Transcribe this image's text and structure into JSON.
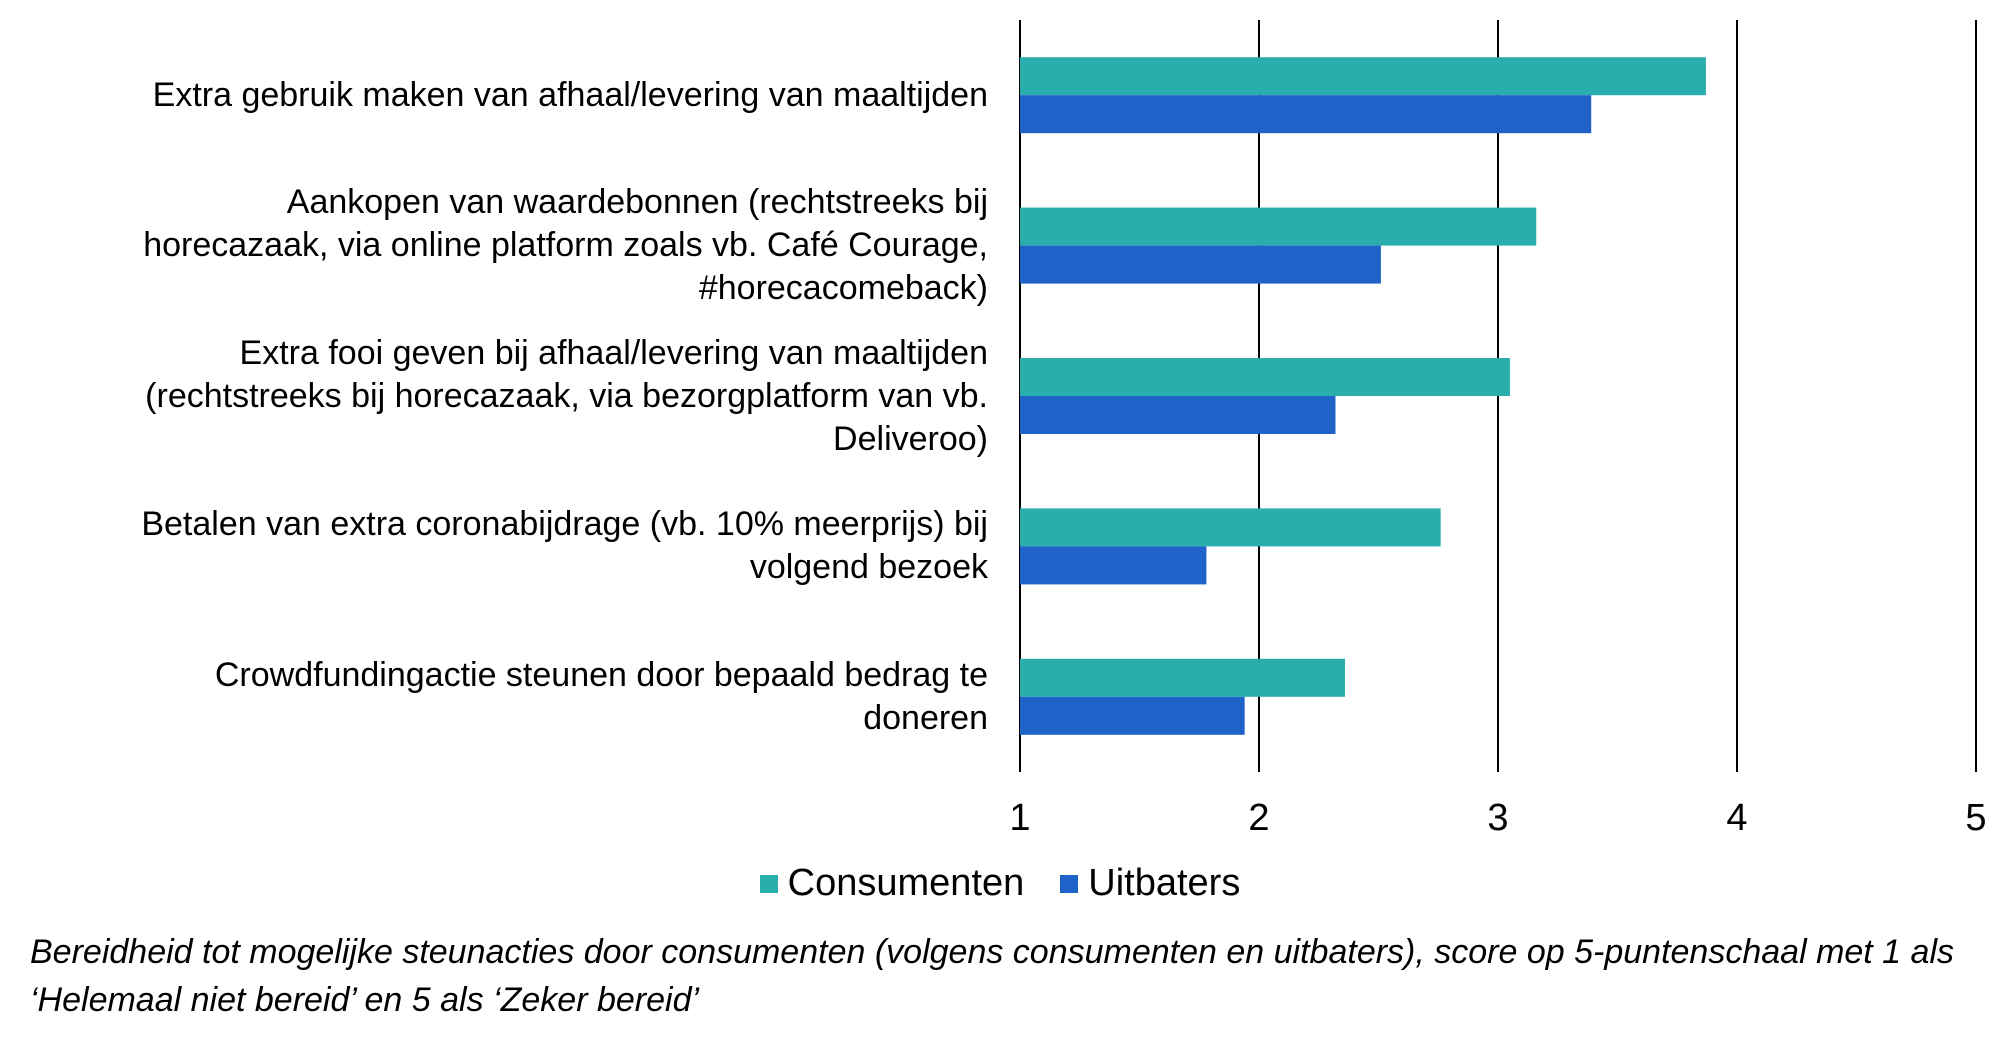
{
  "chart_data": {
    "type": "bar",
    "orientation": "horizontal",
    "categories": [
      "Extra gebruik maken van afhaal/levering van maaltijden",
      "Aankopen van waardebonnen (rechtstreeks bij\nhorecazaak, via online platform zoals vb. Café Courage,\n#horecacomeback)",
      "Extra fooi geven bij afhaal/levering van maaltijden\n(rechtstreeks bij horecazaak, via bezorgplatform van vb.\nDeliveroo)",
      "Betalen van extra coronabijdrage (vb. 10% meerprijs) bij\nvolgend bezoek",
      "Crowdfundingactie steunen door bepaald bedrag te\ndoneren"
    ],
    "series": [
      {
        "name": "Consumenten",
        "color": "#2AADAD",
        "values": [
          3.87,
          3.16,
          3.05,
          2.76,
          2.36
        ]
      },
      {
        "name": "Uitbaters",
        "color": "#1F63C9",
        "values": [
          3.39,
          2.51,
          2.32,
          1.78,
          1.94
        ]
      }
    ],
    "xlim": [
      1,
      5
    ],
    "xticks": [
      "1",
      "2",
      "3",
      "4",
      "5"
    ],
    "grid": "vertical",
    "legend_position": "bottom",
    "caption": "Bereidheid tot mogelijke steunacties door consumenten (volgens consumenten en uitbaters), score op 5-puntenschaal met 1 als ‘Helemaal niet bereid’ en 5 als ‘Zeker bereid’"
  }
}
